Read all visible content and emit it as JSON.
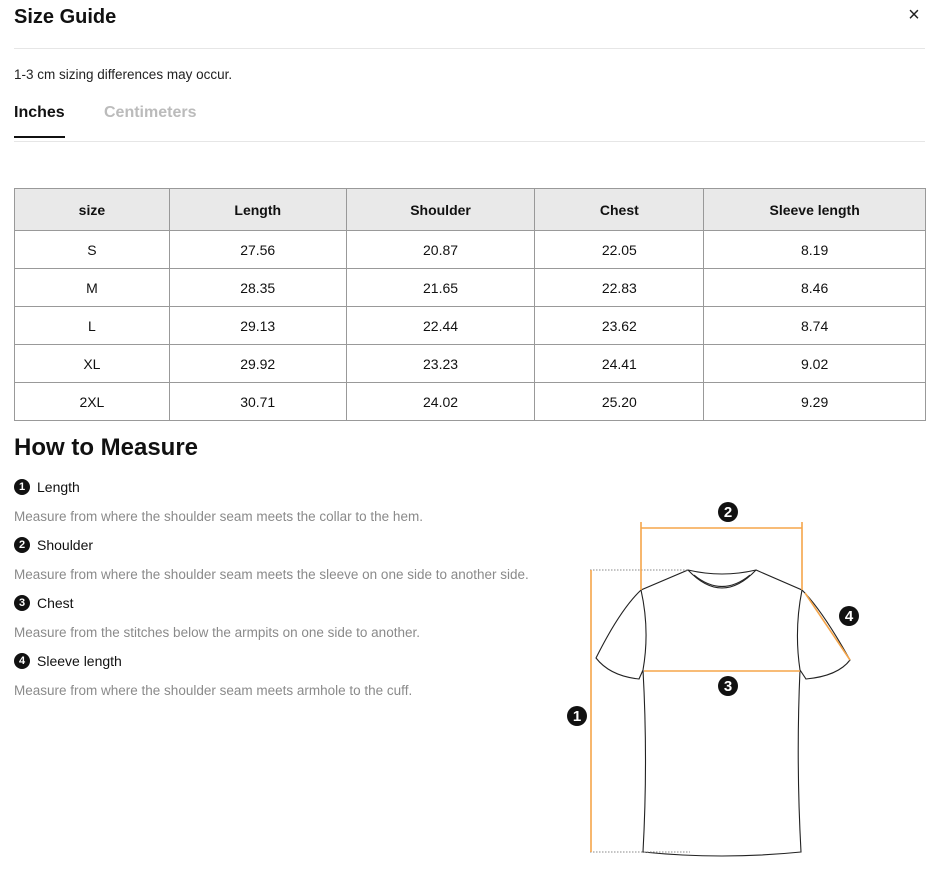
{
  "header": {
    "title": "Size Guide",
    "close_icon": "close-icon"
  },
  "note": "1-3 cm sizing differences may occur.",
  "tabs": [
    {
      "label": "Inches",
      "active": true
    },
    {
      "label": "Centimeters",
      "active": false
    }
  ],
  "table": {
    "headers": [
      "size",
      "Length",
      "Shoulder",
      "Chest",
      "Sleeve length"
    ],
    "rows": [
      [
        "S",
        "27.56",
        "20.87",
        "22.05",
        "8.19"
      ],
      [
        "M",
        "28.35",
        "21.65",
        "22.83",
        "8.46"
      ],
      [
        "L",
        "29.13",
        "22.44",
        "23.62",
        "8.74"
      ],
      [
        "XL",
        "29.92",
        "23.23",
        "24.41",
        "9.02"
      ],
      [
        "2XL",
        "30.71",
        "24.02",
        "25.20",
        "9.29"
      ]
    ]
  },
  "measure": {
    "title": "How to Measure",
    "items": [
      {
        "num": "1",
        "label": "Length",
        "desc": "Measure from where the shoulder seam meets the collar to the hem."
      },
      {
        "num": "2",
        "label": "Shoulder",
        "desc": "Measure from where the shoulder seam meets the sleeve on one side to another side."
      },
      {
        "num": "3",
        "label": "Chest",
        "desc": "Measure from the stitches below the armpits on one side to another."
      },
      {
        "num": "4",
        "label": "Sleeve length",
        "desc": "Measure from where the shoulder seam meets armhole to the cuff."
      }
    ]
  },
  "colors": {
    "measure_line": "#f5a54a",
    "active_tab": "#111111",
    "inactive_tab": "#bbbbbb"
  }
}
